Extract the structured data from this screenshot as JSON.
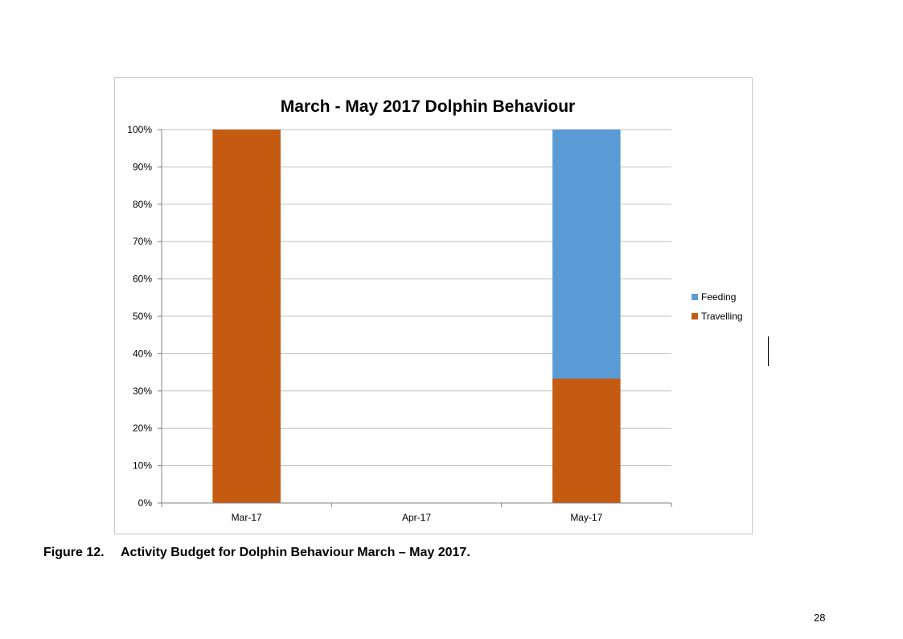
{
  "caption": {
    "figure_number": "Figure 12.",
    "text": "Activity Budget for Dolphin Behaviour March – May 2017."
  },
  "page_number": "28",
  "colors": {
    "feeding": "#5b9bd5",
    "travelling": "#c55a11",
    "grid": "#bfbfbf",
    "axis": "#808080"
  },
  "chart_data": {
    "type": "bar",
    "stacked": true,
    "title": "March - May 2017 Dolphin Behaviour",
    "xlabel": "",
    "ylabel": "",
    "categories": [
      "Mar-17",
      "Apr-17",
      "May-17"
    ],
    "series": [
      {
        "name": "Travelling",
        "values": [
          100,
          0,
          33.3
        ],
        "color": "#c55a11"
      },
      {
        "name": "Feeding",
        "values": [
          0,
          0,
          66.7
        ],
        "color": "#5b9bd5"
      }
    ],
    "ylim": [
      0,
      100
    ],
    "yticks": [
      "0%",
      "10%",
      "20%",
      "30%",
      "40%",
      "50%",
      "60%",
      "70%",
      "80%",
      "90%",
      "100%"
    ],
    "grid": true,
    "legend": {
      "position": "right",
      "entries": [
        "Feeding",
        "Travelling"
      ]
    }
  }
}
